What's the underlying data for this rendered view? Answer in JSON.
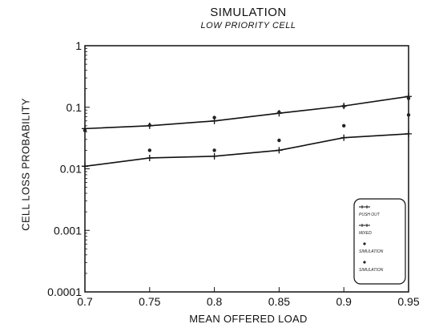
{
  "chart_data": {
    "type": "line",
    "title": "SIMULATION",
    "subtitle": "LOW PRIORITY CELL",
    "xlabel": "MEAN OFFERED LOAD",
    "ylabel": "CELL LOSS PROBABILITY",
    "xlim": [
      0.7,
      0.95
    ],
    "ylim": [
      0.0001,
      1
    ],
    "yscale": "log",
    "grid": false,
    "legend_position": "bottom-right",
    "x_ticks": [
      "0.7",
      "0.75",
      "0.8",
      "0.85",
      "0.9",
      "0.95"
    ],
    "y_ticks": [
      "1",
      "0.1",
      "0.01",
      "0.001",
      "0.0001"
    ],
    "x": [
      0.7,
      0.75,
      0.8,
      0.85,
      0.9,
      0.95
    ],
    "series": [
      {
        "name": "PUSH OUT",
        "marker": "plus-line",
        "values": [
          0.045,
          0.05,
          0.06,
          0.08,
          0.105,
          0.15
        ]
      },
      {
        "name": "MIXED",
        "marker": "plus-line",
        "values": [
          0.011,
          0.015,
          0.016,
          0.02,
          0.032,
          0.037
        ]
      },
      {
        "name": "SIMULATION",
        "marker": "dot",
        "values": [
          0.042,
          0.051,
          0.068,
          0.083,
          0.104,
          0.14
        ]
      },
      {
        "name": "SIMULATION",
        "marker": "dot",
        "values": [
          null,
          0.02,
          0.02,
          0.029,
          0.05,
          0.075
        ]
      }
    ]
  }
}
